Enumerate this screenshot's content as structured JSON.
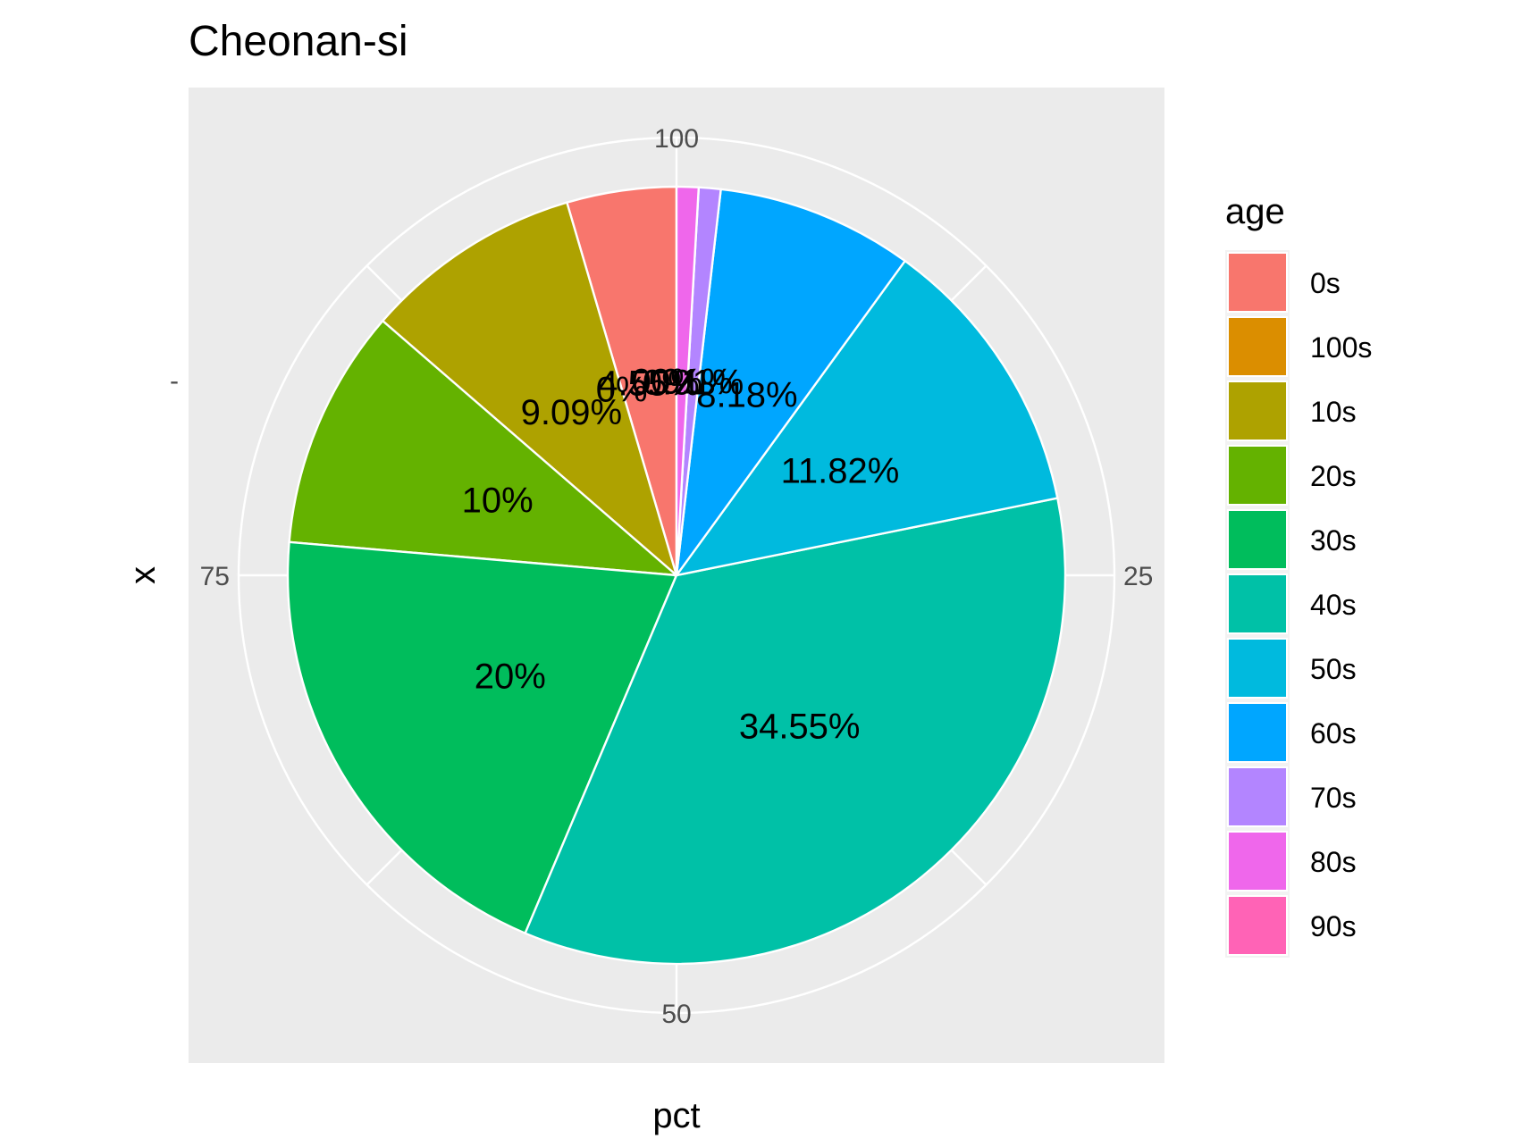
{
  "chart_data": {
    "type": "pie",
    "title": "Cheonan-si",
    "xlabel": "pct",
    "ylabel": "x",
    "y_tick_labels": [
      "-"
    ],
    "x_tick_labels": [
      "100",
      "25",
      "50",
      "75"
    ],
    "legend_title": "age",
    "legend_position": "right",
    "categories": [
      "0s",
      "100s",
      "10s",
      "20s",
      "30s",
      "40s",
      "50s",
      "60s",
      "70s",
      "80s",
      "90s"
    ],
    "values": [
      4.55,
      0,
      9.09,
      10,
      20,
      34.55,
      11.82,
      8.18,
      0.91,
      0.91,
      0
    ],
    "labels": [
      "4.55%",
      "0%",
      "9.09%",
      "10%",
      "20%",
      "34.55%",
      "11.82%",
      "8.18%",
      "0.91%",
      "0.91%",
      "0%"
    ],
    "colors": [
      "#F8766D",
      "#DB8E00",
      "#AEA200",
      "#64B200",
      "#00BD5C",
      "#00C1A7",
      "#00BADE",
      "#00A6FF",
      "#B385FF",
      "#EF67EB",
      "#FF63B6"
    ],
    "grid": true
  }
}
